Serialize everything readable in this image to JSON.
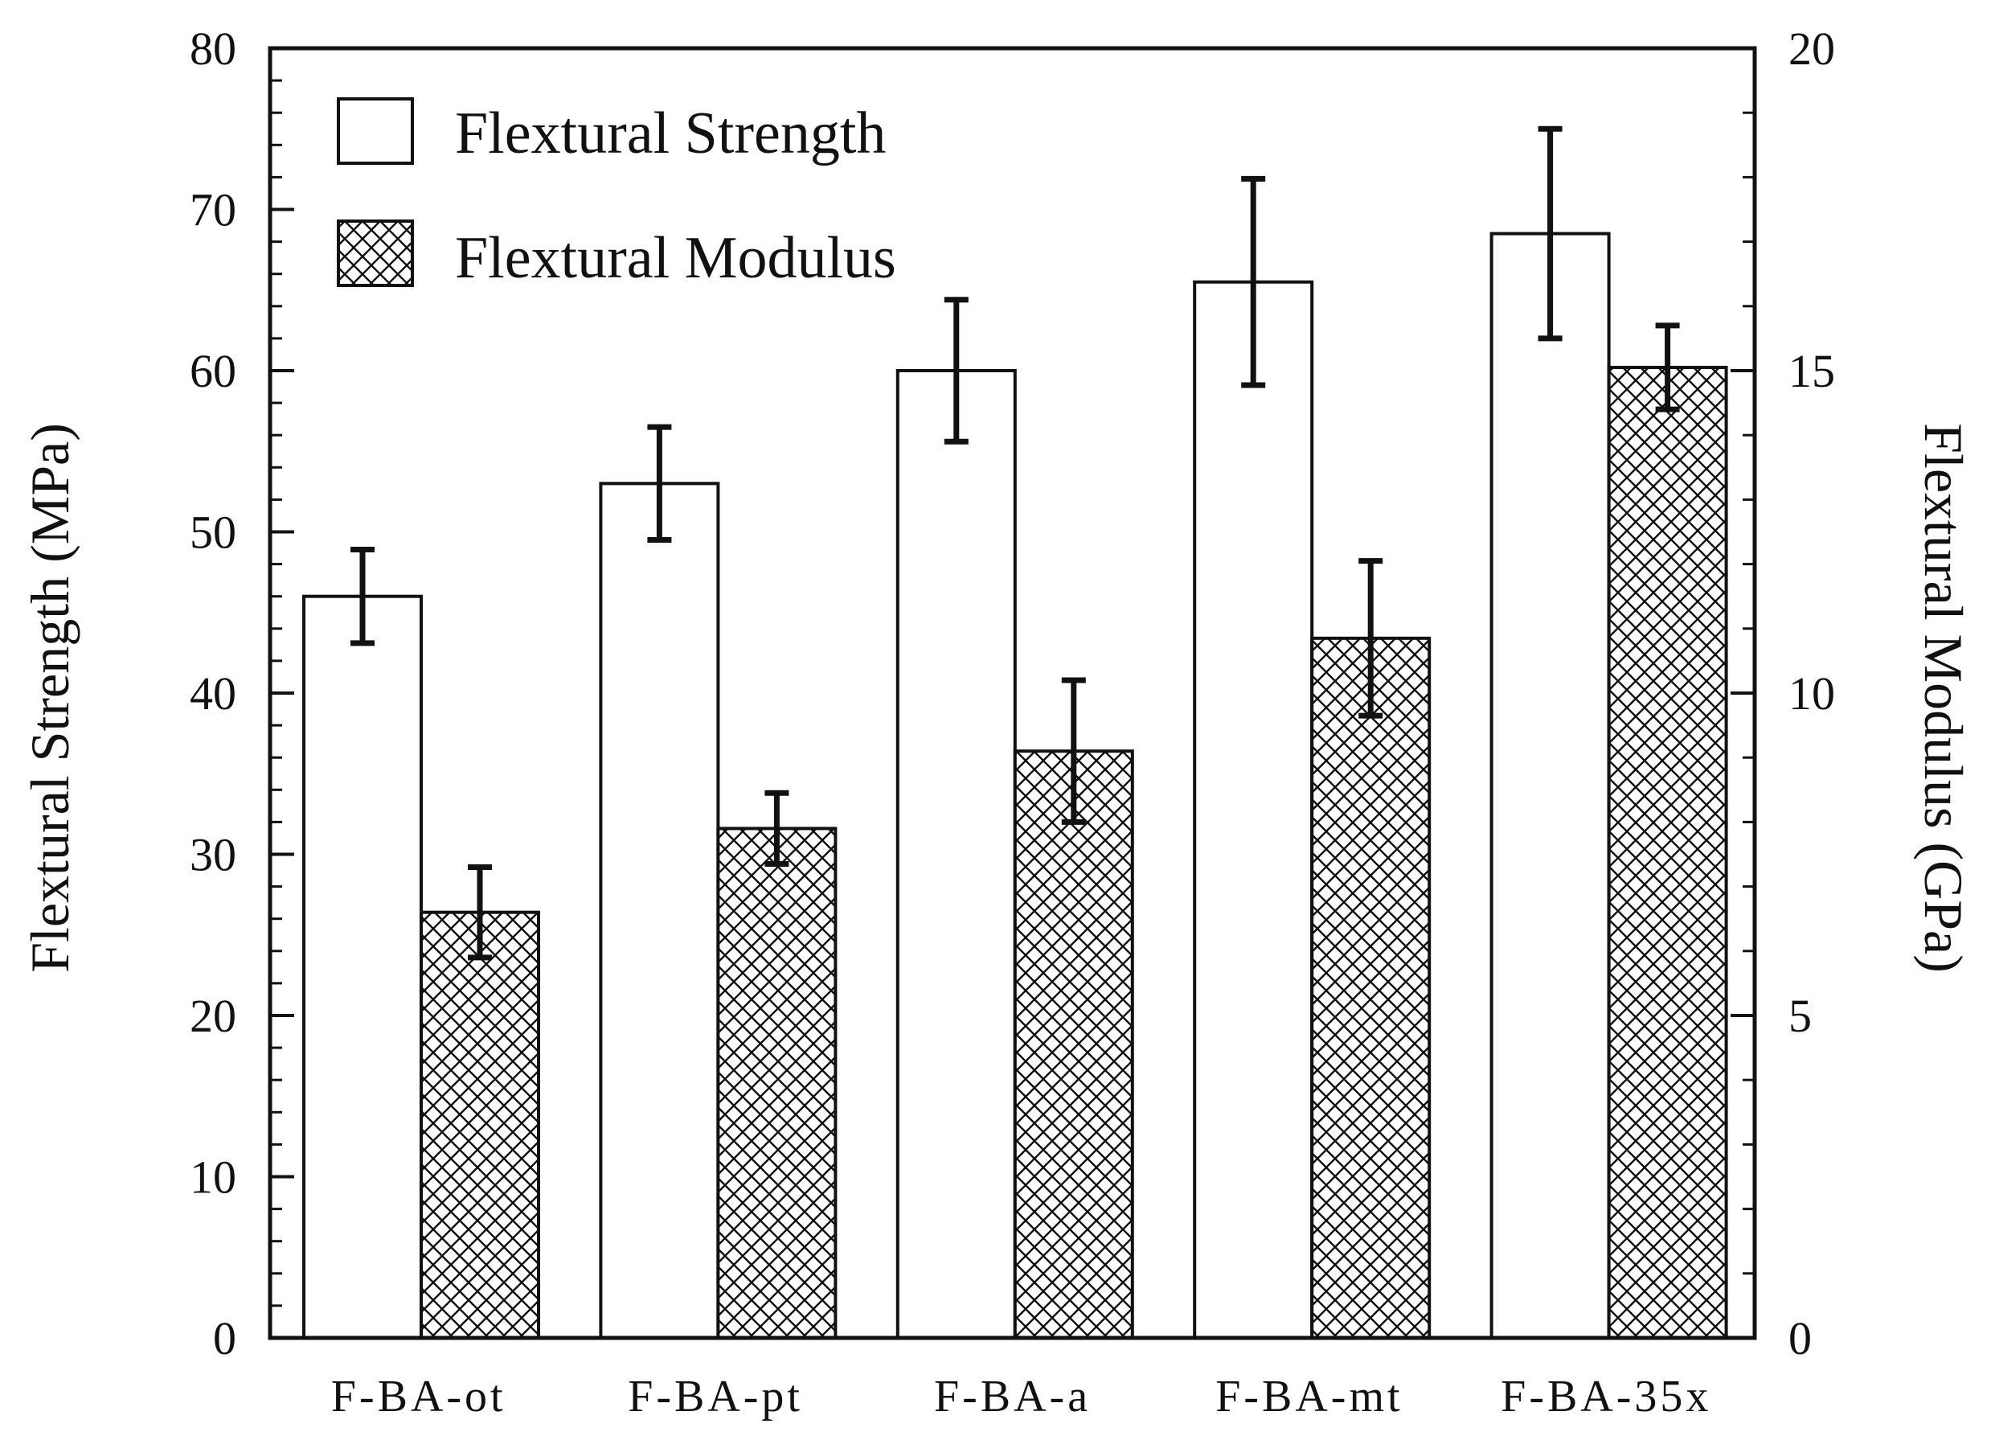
{
  "chart_data": {
    "type": "bar",
    "categories": [
      "F-BA-ot",
      "F-BA-pt",
      "F-BA-a",
      "F-BA-mt",
      "F-BA-35x"
    ],
    "series": [
      {
        "name": "Flextural Strength",
        "axis": "left",
        "pattern": "none",
        "values": [
          46,
          53,
          60,
          65.5,
          68.5
        ],
        "errors": [
          2.9,
          3.5,
          4.4,
          6.4,
          6.5
        ]
      },
      {
        "name": "Flextural Modulus",
        "axis": "right",
        "pattern": "crosshatch",
        "values": [
          6.6,
          7.9,
          9.1,
          10.85,
          15.05
        ],
        "errors": [
          0.7,
          0.55,
          1.1,
          1.2,
          0.65
        ]
      }
    ],
    "ylabel": "Flextural Strength (MPa)",
    "y2label": "Flextural Modulus (GPa)",
    "ylim": [
      0,
      80
    ],
    "y2lim": [
      0,
      20
    ],
    "yticks": [
      0,
      10,
      20,
      30,
      40,
      50,
      60,
      70,
      80
    ],
    "y2ticks": [
      0,
      5,
      10,
      15,
      20
    ],
    "grid": false,
    "legend_position": "top-left",
    "colors": {
      "bar_fill": "#ffffff",
      "stroke": "#111111"
    }
  }
}
